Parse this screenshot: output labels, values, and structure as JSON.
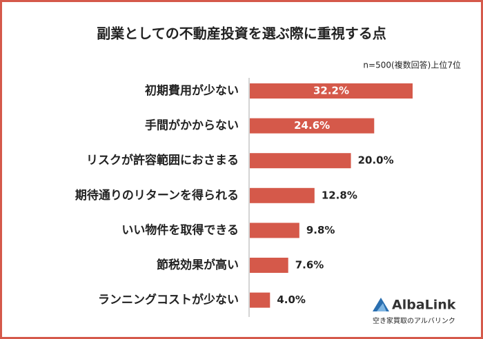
{
  "chart_data": {
    "type": "bar",
    "orientation": "horizontal",
    "title": "副業としての不動産投資を選ぶ際に重視する点",
    "subtitle": "n=500(複数回答)上位7位",
    "categories": [
      "初期費用が少ない",
      "手間がかからない",
      "リスクが許容範囲におさまる",
      "期待通りのリターンを得られる",
      "いい物件を取得できる",
      "節税効果が高い",
      "ランニングコストが少ない"
    ],
    "values": [
      32.2,
      24.6,
      20.0,
      12.8,
      9.8,
      7.6,
      4.0
    ],
    "value_labels": [
      "32.2%",
      "24.6%",
      "20.0%",
      "12.8%",
      "9.8%",
      "7.6%",
      "4.0%"
    ],
    "color": "#d5594a"
  },
  "branding": {
    "name": "AlbaLink",
    "tagline": "空き家買取のアルバリンク"
  }
}
